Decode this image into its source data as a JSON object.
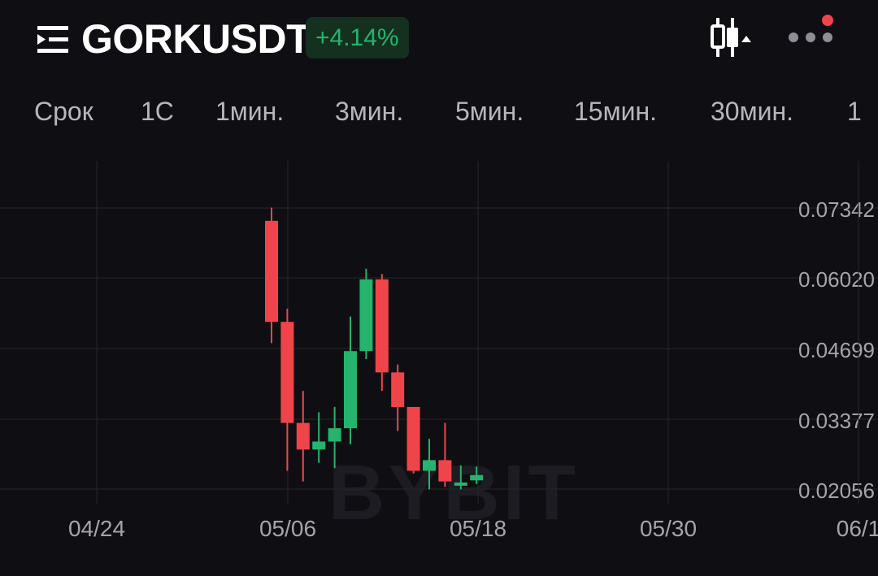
{
  "header": {
    "symbol": "GORKUSDT",
    "change": "+4.14%",
    "icons": {
      "menu": "menu-list-icon",
      "candle": "candlestick-toggle-icon",
      "more": "more-dots-icon"
    },
    "colors": {
      "up": "#25b36d",
      "down": "#ef454a",
      "badge_bg": "#14301f",
      "notification": "#f0444d"
    }
  },
  "tabs": [
    {
      "label": "Срок"
    },
    {
      "label": "1С"
    },
    {
      "label": "1мин."
    },
    {
      "label": "3мин."
    },
    {
      "label": "5мин."
    },
    {
      "label": "15мин."
    },
    {
      "label": "30мин."
    },
    {
      "label": "1"
    }
  ],
  "watermark": "BYBIT",
  "chart_data": {
    "type": "candlestick",
    "y_ticks": [
      "0.07342",
      "0.06020",
      "0.04699",
      "0.03377",
      "0.02056"
    ],
    "x_ticks": [
      "04/24",
      "05/06",
      "05/18",
      "05/30",
      "06/1"
    ],
    "grid": true,
    "candles": [
      {
        "date": "05/05",
        "open": 0.071,
        "high": 0.0735,
        "low": 0.048,
        "close": 0.052
      },
      {
        "date": "05/06",
        "open": 0.052,
        "high": 0.0545,
        "low": 0.024,
        "close": 0.033
      },
      {
        "date": "05/07",
        "open": 0.033,
        "high": 0.039,
        "low": 0.022,
        "close": 0.028
      },
      {
        "date": "05/08",
        "open": 0.028,
        "high": 0.035,
        "low": 0.0255,
        "close": 0.0295
      },
      {
        "date": "05/09",
        "open": 0.0295,
        "high": 0.036,
        "low": 0.0245,
        "close": 0.032
      },
      {
        "date": "05/10",
        "open": 0.032,
        "high": 0.053,
        "low": 0.029,
        "close": 0.0465
      },
      {
        "date": "05/11",
        "open": 0.0465,
        "high": 0.062,
        "low": 0.045,
        "close": 0.06
      },
      {
        "date": "05/12",
        "open": 0.06,
        "high": 0.061,
        "low": 0.039,
        "close": 0.0425
      },
      {
        "date": "05/13",
        "open": 0.0425,
        "high": 0.044,
        "low": 0.0315,
        "close": 0.036
      },
      {
        "date": "05/14",
        "open": 0.036,
        "high": 0.036,
        "low": 0.0235,
        "close": 0.024
      },
      {
        "date": "05/15",
        "open": 0.024,
        "high": 0.03,
        "low": 0.0205,
        "close": 0.026
      },
      {
        "date": "05/16",
        "open": 0.026,
        "high": 0.033,
        "low": 0.021,
        "close": 0.022
      },
      {
        "date": "05/17",
        "open": 0.0215,
        "high": 0.025,
        "low": 0.0205,
        "close": 0.0218
      },
      {
        "date": "05/18",
        "open": 0.0222,
        "high": 0.0248,
        "low": 0.0215,
        "close": 0.0232
      }
    ]
  }
}
